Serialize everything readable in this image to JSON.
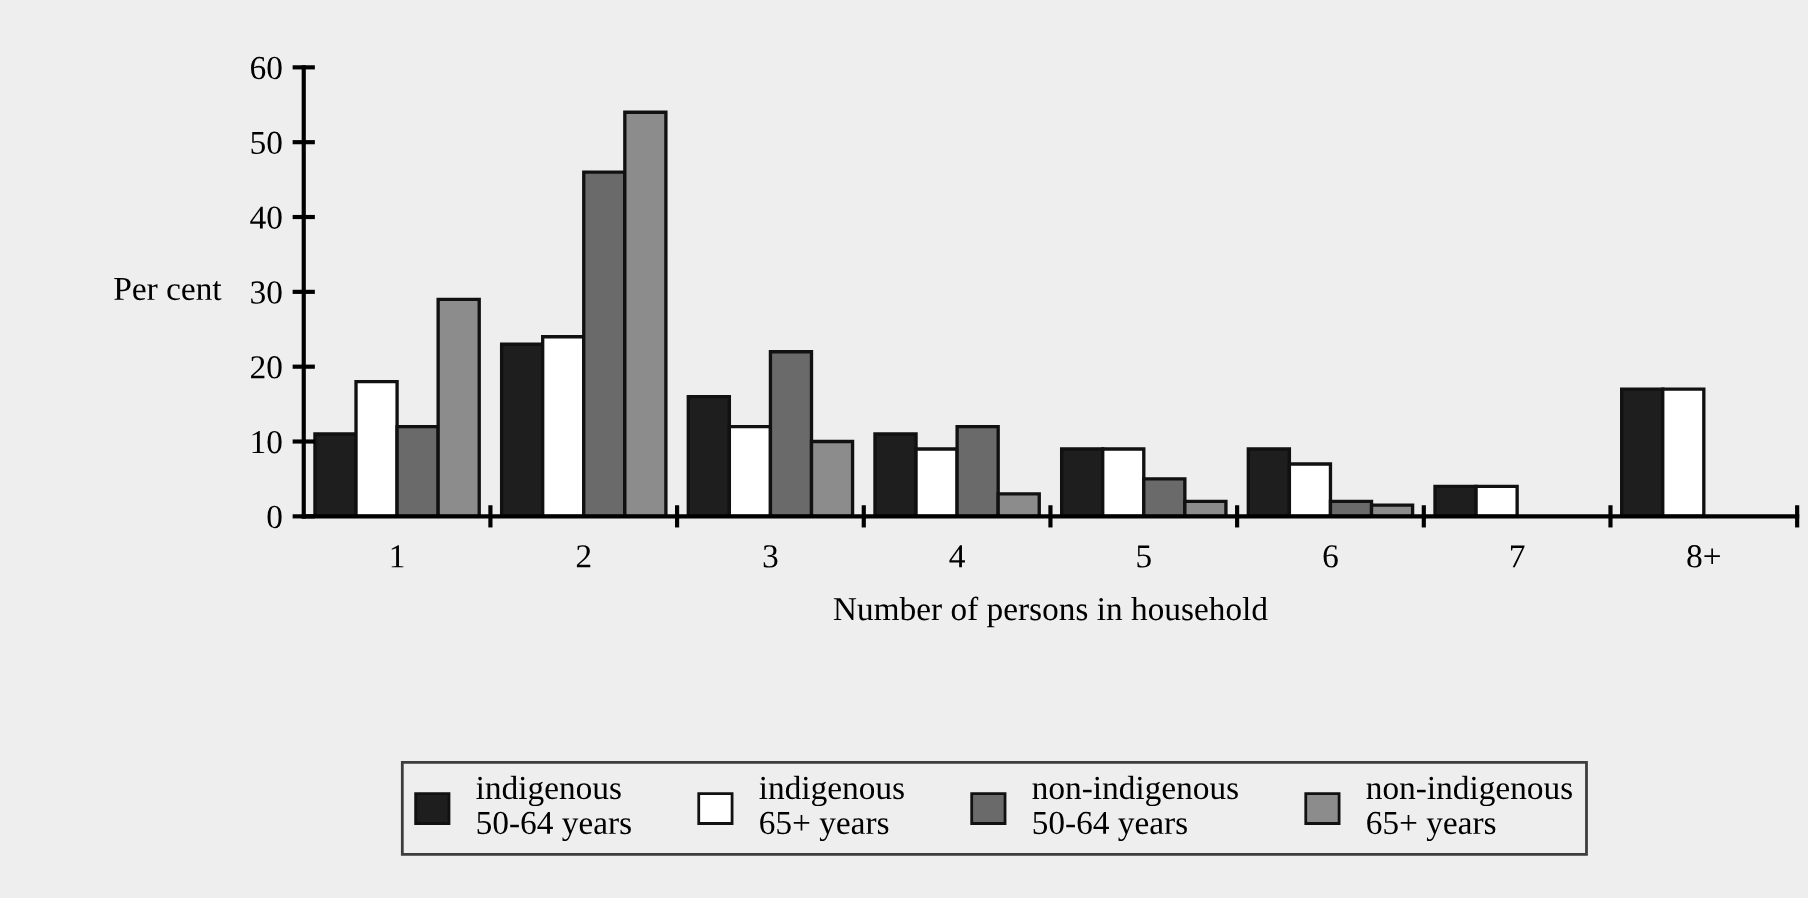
{
  "chart_data": {
    "type": "bar",
    "xlabel": "Number of persons in household",
    "ylabel": "Per cent",
    "categories": [
      "1",
      "2",
      "3",
      "4",
      "5",
      "6",
      "7",
      "8+"
    ],
    "series": [
      {
        "name": "indigenous\n50-64 years",
        "color": "#1e1e1e",
        "values": [
          11,
          23,
          16,
          11,
          9,
          9,
          4,
          17
        ]
      },
      {
        "name": "indigenous\n65+ years",
        "color": "#ffffff",
        "values": [
          18,
          24,
          12,
          9,
          9,
          7,
          4,
          17
        ]
      },
      {
        "name": "non-indigenous\n50-64 years",
        "color": "#6a6a6a",
        "values": [
          12,
          46,
          22,
          12,
          5,
          2,
          null,
          null
        ]
      },
      {
        "name": "non-indigenous\n65+ years",
        "color": "#8c8c8c",
        "values": [
          29,
          54,
          10,
          3,
          2,
          1.5,
          null,
          null
        ]
      }
    ],
    "ylim": [
      0,
      60
    ],
    "yticks": [
      0,
      10,
      20,
      30,
      40,
      50,
      60
    ],
    "grid": false,
    "legend": "bottom"
  }
}
